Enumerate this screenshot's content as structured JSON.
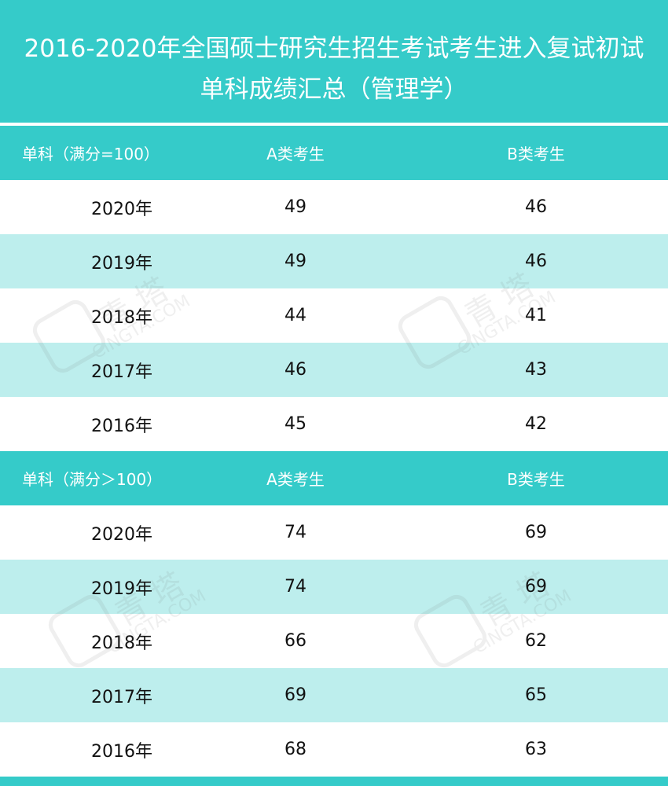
{
  "title": {
    "line1": "2016-2020年全国硕士研究生招生考试考生进入复试初试",
    "line2": "单科成绩汇总（管理学）"
  },
  "watermark": {
    "brand_cn": "青 塔",
    "brand_en": "CINGTA.COM"
  },
  "sections": [
    {
      "header": {
        "col1": "单科（满分=100）",
        "col2": "A类考生",
        "col3": "B类考生"
      },
      "rows": [
        {
          "year": "2020年",
          "a": "49",
          "b": "46"
        },
        {
          "year": "2019年",
          "a": "49",
          "b": "46"
        },
        {
          "year": "2018年",
          "a": "44",
          "b": "41"
        },
        {
          "year": "2017年",
          "a": "46",
          "b": "43"
        },
        {
          "year": "2016年",
          "a": "45",
          "b": "42"
        }
      ]
    },
    {
      "header": {
        "col1": "单科（满分＞100）",
        "col2": "A类考生",
        "col3": "B类考生"
      },
      "rows": [
        {
          "year": "2020年",
          "a": "74",
          "b": "69"
        },
        {
          "year": "2019年",
          "a": "74",
          "b": "69"
        },
        {
          "year": "2018年",
          "a": "66",
          "b": "62"
        },
        {
          "year": "2017年",
          "a": "69",
          "b": "65"
        },
        {
          "year": "2016年",
          "a": "68",
          "b": "63"
        }
      ]
    }
  ],
  "colors": {
    "header_teal": "#35cbc9",
    "stripe_teal": "#bdeeed",
    "text": "#111111"
  }
}
